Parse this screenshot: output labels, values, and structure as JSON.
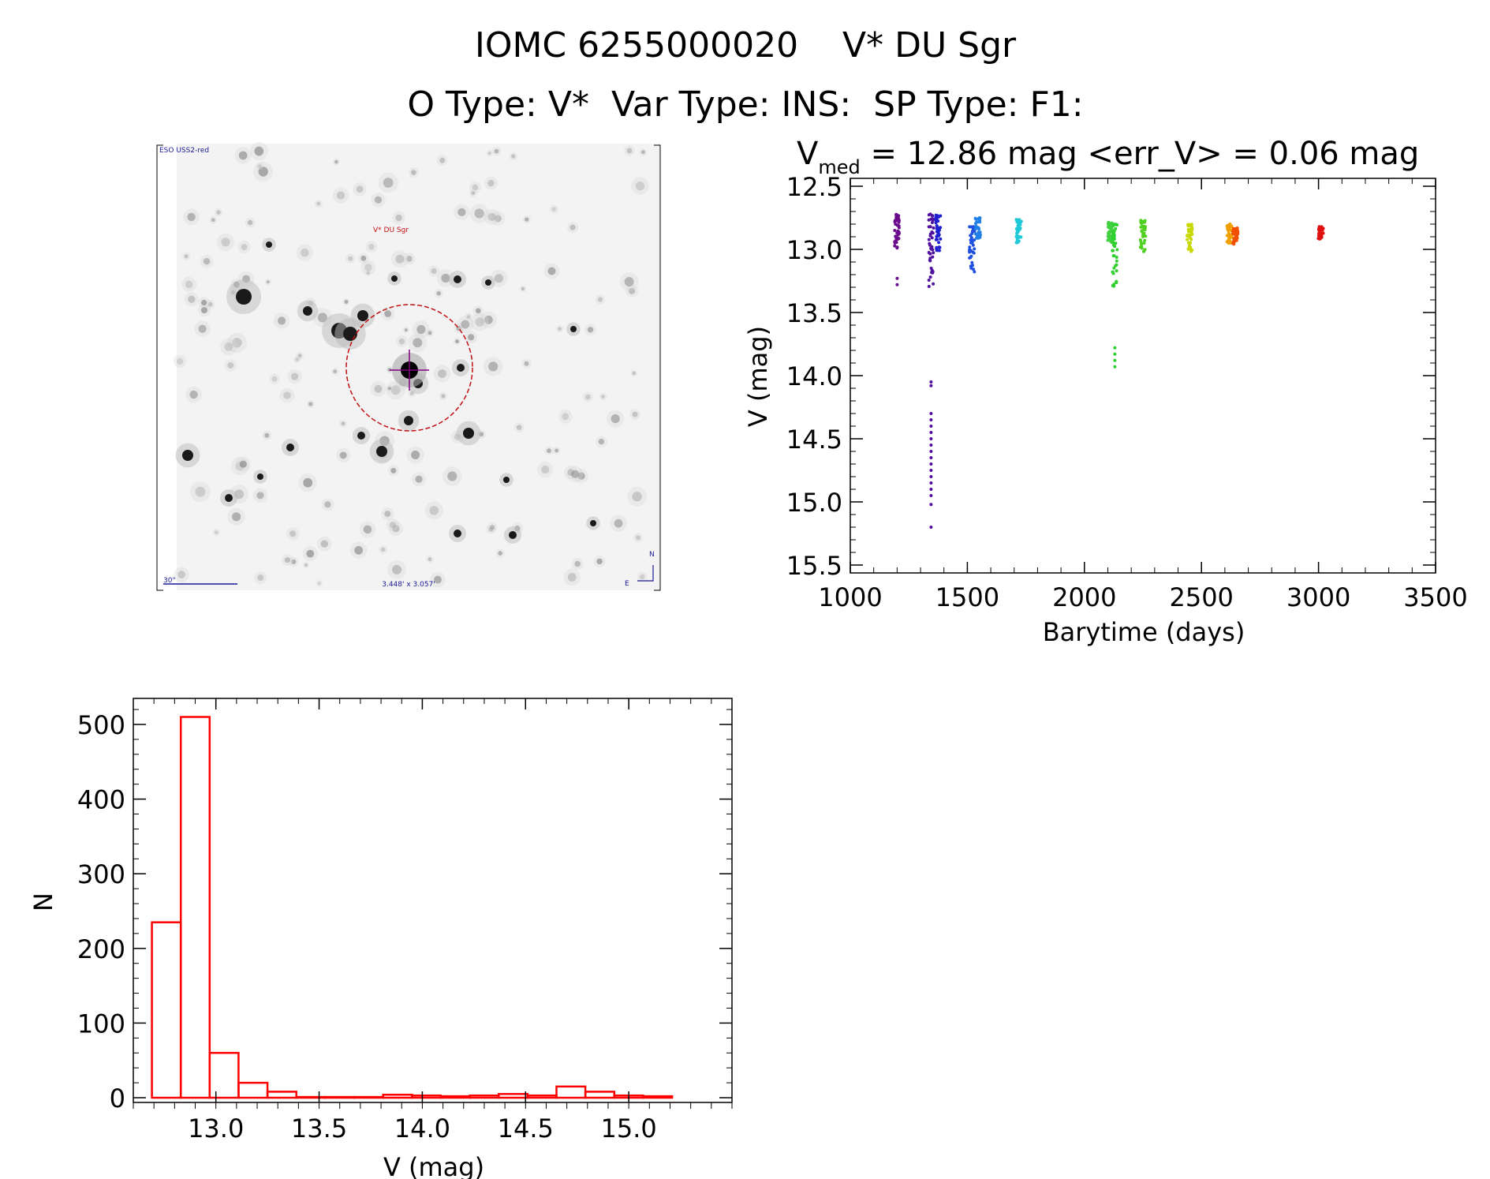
{
  "header": {
    "title": "IOMC 6255000020    V* DU Sgr",
    "subtitle": "O Type: V*  Var Type: INS:  SP Type: F1:"
  },
  "image_panel": {
    "survey_label": "ESO USS2-red",
    "object_label": "V* DU Sgr",
    "scale_label": "30\"",
    "fov_label": "3.448' x 3.057'",
    "north_label": "N",
    "east_label": "E"
  },
  "colors": {
    "histogram": "#ff0000",
    "circle": "#c01010",
    "marker": "#800080"
  },
  "chart_data": [
    {
      "type": "scatter",
      "title_main": "V",
      "title_sub": "med",
      "title_rest": " = 12.86 mag <err_V> = 0.06 mag",
      "xlabel": "Barytime (days)",
      "ylabel": "V (mag)",
      "xlim": [
        1000,
        3500
      ],
      "ylim": [
        15.6,
        12.5
      ],
      "y_inverted": true,
      "xticks": [
        1000,
        1500,
        2000,
        2500,
        3000,
        3500
      ],
      "xtick_labels": [
        "1000",
        "1500",
        "2000",
        "2500",
        "3000",
        "3500"
      ],
      "yticks": [
        12.5,
        13.0,
        13.5,
        14.0,
        14.5,
        15.0,
        15.5
      ],
      "ytick_labels": [
        "12.5",
        "13.0",
        "13.5",
        "14.0",
        "14.5",
        "15.0",
        "15.5"
      ],
      "groups": [
        {
          "x": 1200,
          "color": "#6a0a8a",
          "ymin": 12.72,
          "ymax": 13.0,
          "outliers": [
            13.23,
            13.28
          ]
        },
        {
          "x": 1345,
          "color": "#5010a0",
          "ymin": 12.72,
          "ymax": 13.3,
          "outliers": [
            14.05,
            14.08,
            14.3,
            14.35,
            14.4,
            14.45,
            14.5,
            14.55,
            14.6,
            14.65,
            14.7,
            14.75,
            14.8,
            14.85,
            14.9,
            14.95,
            15.02,
            15.2
          ]
        },
        {
          "x": 1375,
          "color": "#2020d0",
          "ymin": 12.73,
          "ymax": 13.02,
          "outliers": []
        },
        {
          "x": 1520,
          "color": "#2050e0",
          "ymin": 12.82,
          "ymax": 13.18,
          "outliers": []
        },
        {
          "x": 1545,
          "color": "#2080e8",
          "ymin": 12.75,
          "ymax": 12.92,
          "outliers": []
        },
        {
          "x": 1720,
          "color": "#20c8d8",
          "ymin": 12.76,
          "ymax": 12.95,
          "outliers": []
        },
        {
          "x": 2110,
          "color": "#40d040",
          "ymin": 12.78,
          "ymax": 12.95,
          "outliers": []
        },
        {
          "x": 2130,
          "color": "#30d030",
          "ymin": 12.8,
          "ymax": 13.3,
          "outliers": [
            13.78,
            13.83,
            13.88,
            13.93
          ]
        },
        {
          "x": 2250,
          "color": "#50d020",
          "ymin": 12.77,
          "ymax": 13.02,
          "outliers": []
        },
        {
          "x": 2450,
          "color": "#c8d800",
          "ymin": 12.8,
          "ymax": 13.02,
          "outliers": []
        },
        {
          "x": 2620,
          "color": "#f0a000",
          "ymin": 12.8,
          "ymax": 12.95,
          "outliers": []
        },
        {
          "x": 2645,
          "color": "#f05000",
          "ymin": 12.83,
          "ymax": 12.96,
          "outliers": []
        },
        {
          "x": 3010,
          "color": "#e01010",
          "ymin": 12.82,
          "ymax": 12.92,
          "outliers": []
        }
      ]
    },
    {
      "type": "bar",
      "subtype": "histogram",
      "xlabel": "V (mag)",
      "ylabel": "N",
      "xlim": [
        12.6,
        15.5
      ],
      "ylim": [
        -10,
        530
      ],
      "xticks": [
        13.0,
        13.5,
        14.0,
        14.5,
        15.0
      ],
      "xtick_labels": [
        "13.0",
        "13.5",
        "14.0",
        "14.5",
        "15.0"
      ],
      "yticks": [
        0,
        100,
        200,
        300,
        400,
        500
      ],
      "ytick_labels": [
        "0",
        "100",
        "200",
        "300",
        "400",
        "500"
      ],
      "bin_width": 0.14,
      "bin_start": 12.69,
      "values": [
        235,
        510,
        60,
        20,
        8,
        1,
        1,
        1,
        4,
        3,
        2,
        3,
        5,
        3,
        15,
        8,
        3,
        2
      ]
    }
  ]
}
